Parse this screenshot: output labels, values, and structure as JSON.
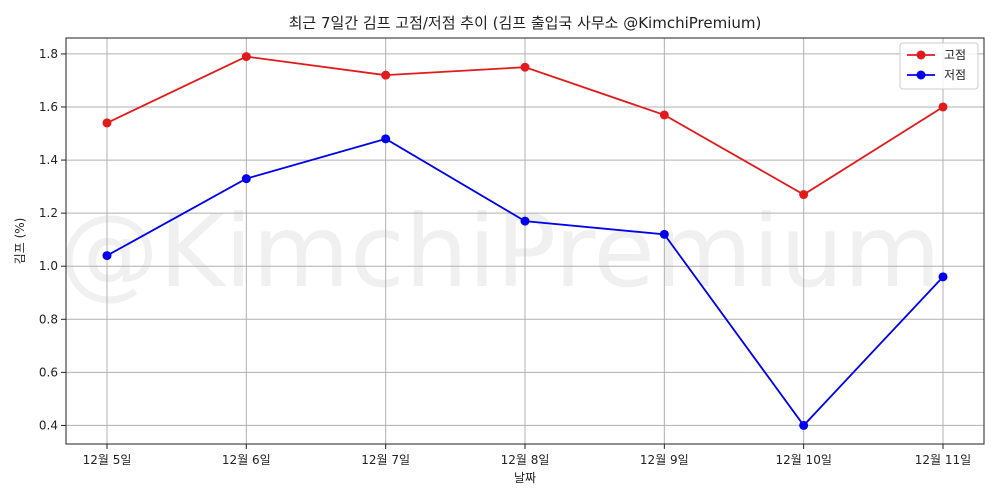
{
  "chart_data": {
    "type": "line",
    "title": "최근 7일간 김프 고점/저점 추이 (김프 출입국 사무소 @KimchiPremium)",
    "xlabel": "날짜",
    "ylabel": "김프 (%)",
    "categories": [
      "12월 5일",
      "12월 6일",
      "12월 7일",
      "12월 8일",
      "12월 9일",
      "12월 10일",
      "12월 11일"
    ],
    "series": [
      {
        "name": "고점",
        "color": "#e31a1c",
        "values": [
          1.54,
          1.79,
          1.72,
          1.75,
          1.57,
          1.27,
          1.6
        ]
      },
      {
        "name": "저점",
        "color": "#0000ee",
        "values": [
          1.04,
          1.33,
          1.48,
          1.17,
          1.12,
          0.4,
          0.96
        ]
      }
    ],
    "ylim": [
      0.33,
      1.86
    ],
    "yticks": [
      0.4,
      0.6,
      0.8,
      1.0,
      1.2,
      1.4,
      1.6,
      1.8
    ],
    "ytick_labels": [
      "0.4",
      "0.6",
      "0.8",
      "1.0",
      "1.2",
      "1.4",
      "1.6",
      "1.8"
    ],
    "grid": true,
    "legend_position": "top-right",
    "watermark": "@KimchiPremium"
  }
}
